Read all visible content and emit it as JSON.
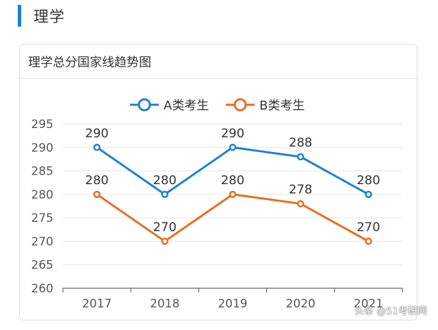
{
  "header": {
    "title": "理学"
  },
  "card": {
    "title": "理学总分国家线趋势图"
  },
  "watermark": "头条 @51考研网",
  "colors": {
    "accent": "#1a7fd8",
    "series_a": "#1a80d6",
    "series_b": "#ea6c1a",
    "grid": "#e3e6ea",
    "axis_text": "#555555"
  },
  "chart_data": {
    "type": "line",
    "categories": [
      "2017",
      "2018",
      "2019",
      "2020",
      "2021"
    ],
    "series": [
      {
        "name": "A类考生",
        "values": [
          290,
          280,
          290,
          288,
          280
        ]
      },
      {
        "name": "B类考生",
        "values": [
          280,
          270,
          280,
          278,
          270
        ]
      }
    ],
    "ylim": [
      260,
      295
    ],
    "yticks": [
      260,
      265,
      270,
      275,
      280,
      285,
      290,
      295
    ],
    "grid": true,
    "legend": "top-center",
    "data_labels": true
  }
}
